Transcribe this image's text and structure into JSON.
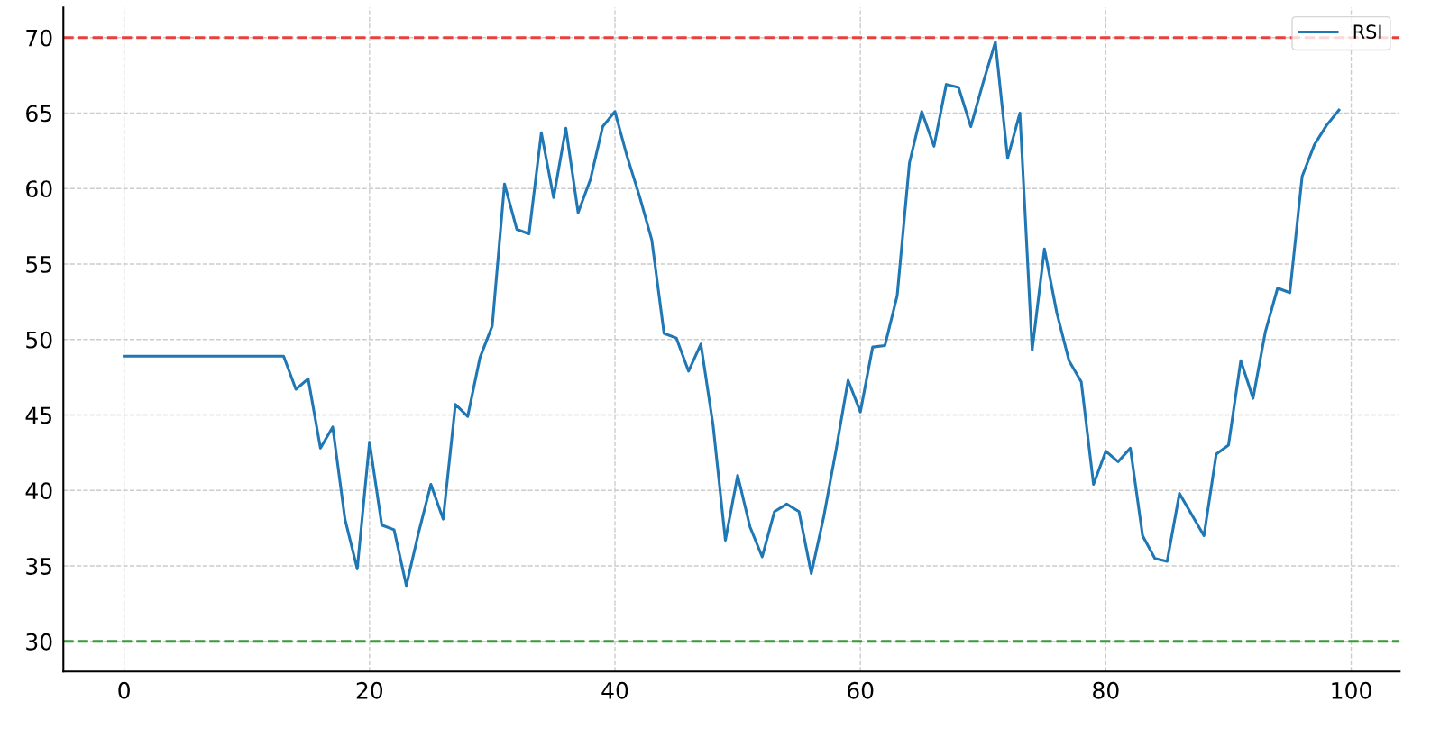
{
  "chart_data": {
    "type": "line",
    "x": [
      0,
      1,
      2,
      3,
      4,
      5,
      6,
      7,
      8,
      9,
      10,
      11,
      12,
      13,
      14,
      15,
      16,
      17,
      18,
      19,
      20,
      21,
      22,
      23,
      24,
      25,
      26,
      27,
      28,
      29,
      30,
      31,
      32,
      33,
      34,
      35,
      36,
      37,
      38,
      39,
      40,
      41,
      42,
      43,
      44,
      45,
      46,
      47,
      48,
      49,
      50,
      51,
      52,
      53,
      54,
      55,
      56,
      57,
      58,
      59,
      60,
      61,
      62,
      63,
      64,
      65,
      66,
      67,
      68,
      69,
      70,
      71,
      72,
      73,
      74,
      75,
      76,
      77,
      78,
      79,
      80,
      81,
      82,
      83,
      84,
      85,
      86,
      87,
      88,
      89,
      90,
      91,
      92,
      93,
      94,
      95,
      96,
      97,
      98,
      99
    ],
    "series": [
      {
        "name": "RSI",
        "color": "#1f77b4",
        "values": [
          48.9,
          48.9,
          48.9,
          48.9,
          48.9,
          48.9,
          48.9,
          48.9,
          48.9,
          48.9,
          48.9,
          48.9,
          48.9,
          48.9,
          46.7,
          47.4,
          42.8,
          44.2,
          38.1,
          34.8,
          43.2,
          37.7,
          37.4,
          33.7,
          37.2,
          40.4,
          38.1,
          45.7,
          44.9,
          48.8,
          50.9,
          60.3,
          57.3,
          57.0,
          63.7,
          59.4,
          64.0,
          58.4,
          60.6,
          64.1,
          65.1,
          62.1,
          59.5,
          56.6,
          50.4,
          50.1,
          47.9,
          49.7,
          44.3,
          36.7,
          41.0,
          37.6,
          35.6,
          38.6,
          39.1,
          38.6,
          34.5,
          38.2,
          42.6,
          47.3,
          45.2,
          49.5,
          49.6,
          52.9,
          61.7,
          65.1,
          62.8,
          66.9,
          66.7,
          64.1,
          67.0,
          69.7,
          62.0,
          65.0,
          49.3,
          56.0,
          51.8,
          48.6,
          47.2,
          40.4,
          42.6,
          41.9,
          42.8,
          37.0,
          35.5,
          35.3,
          39.8,
          38.4,
          37.0,
          42.4,
          43.0,
          48.6,
          46.1,
          50.5,
          53.4,
          53.1,
          60.8,
          62.9,
          64.2,
          65.2
        ]
      }
    ],
    "xlim": [
      -4.95,
      103.95
    ],
    "xticks": [
      0,
      20,
      40,
      60,
      80,
      100
    ],
    "ylim": [
      28,
      72
    ],
    "yticks": [
      30,
      35,
      40,
      45,
      50,
      55,
      60,
      65,
      70
    ],
    "ref_lines": [
      {
        "axis": "y",
        "value": 70,
        "color": "#e8403c",
        "line_style": "dashed"
      },
      {
        "axis": "y",
        "value": 30,
        "color": "#3a9a3a",
        "line_style": "dashed"
      }
    ],
    "grid": true,
    "legend": "top right",
    "marker": "none",
    "line_style": "solid"
  }
}
